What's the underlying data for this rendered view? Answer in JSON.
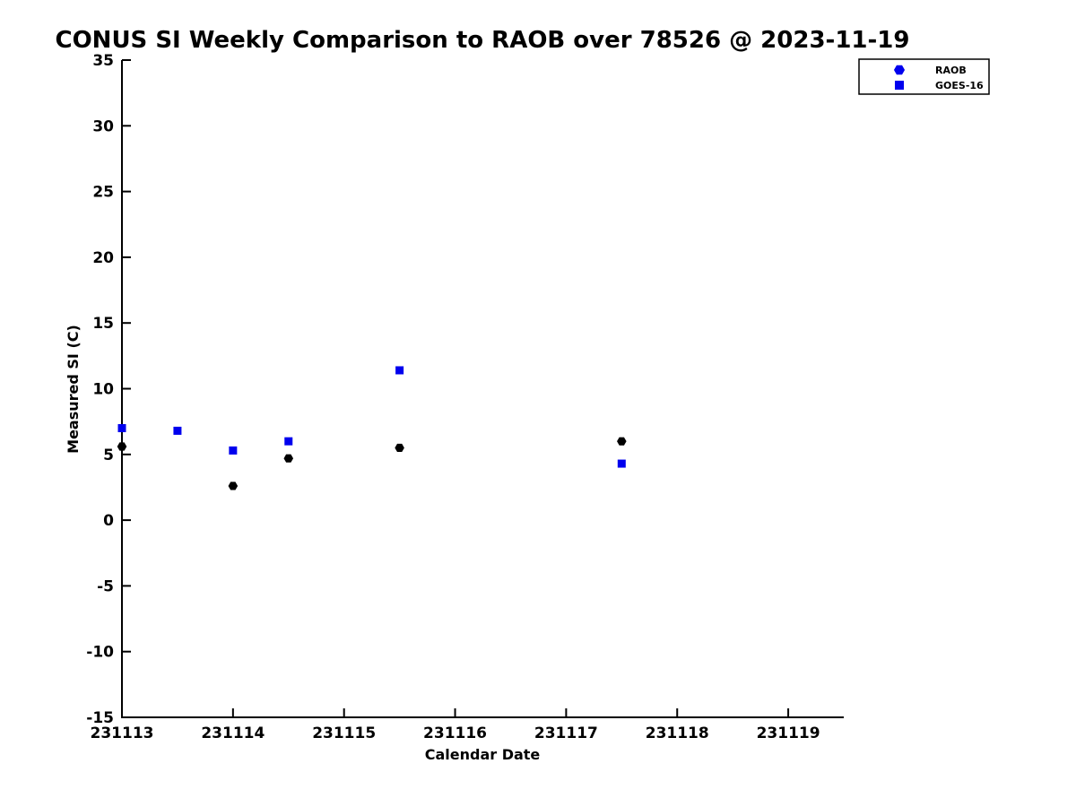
{
  "figure": {
    "background": "#ffffff",
    "text_color": "#000000"
  },
  "chart_data": {
    "type": "scatter",
    "title": "CONUS SI Weekly Comparison to RAOB over 78526 @ 2023-11-19",
    "xlabel": "Calendar Date",
    "ylabel": "Measured SI (C)",
    "xlim": [
      231113,
      231119.5
    ],
    "ylim": [
      -15,
      35
    ],
    "xticks": [
      231113,
      231114,
      231115,
      231116,
      231117,
      231118,
      231119
    ],
    "yticks": [
      -15,
      -10,
      -5,
      0,
      5,
      10,
      15,
      20,
      25,
      30,
      35
    ],
    "grid": false,
    "legend": {
      "position": "top-right",
      "border_color": "#000000",
      "background": "#ffffff"
    },
    "series": [
      {
        "name": "RAOB",
        "marker": "hexagon",
        "plot_color": "#000000",
        "legend_color": "#0000ee",
        "points": [
          {
            "x": 231113.0,
            "y": 5.6
          },
          {
            "x": 231114.0,
            "y": 2.6
          },
          {
            "x": 231114.5,
            "y": 4.7
          },
          {
            "x": 231115.5,
            "y": 5.5
          },
          {
            "x": 231117.5,
            "y": 6.0
          }
        ]
      },
      {
        "name": "GOES-16",
        "marker": "square",
        "plot_color": "#0000ee",
        "legend_color": "#0000ee",
        "points": [
          {
            "x": 231113.0,
            "y": 7.0
          },
          {
            "x": 231113.5,
            "y": 6.8
          },
          {
            "x": 231114.0,
            "y": 5.3
          },
          {
            "x": 231114.5,
            "y": 6.0
          },
          {
            "x": 231115.5,
            "y": 11.4
          },
          {
            "x": 231117.5,
            "y": 4.3
          }
        ]
      }
    ]
  }
}
